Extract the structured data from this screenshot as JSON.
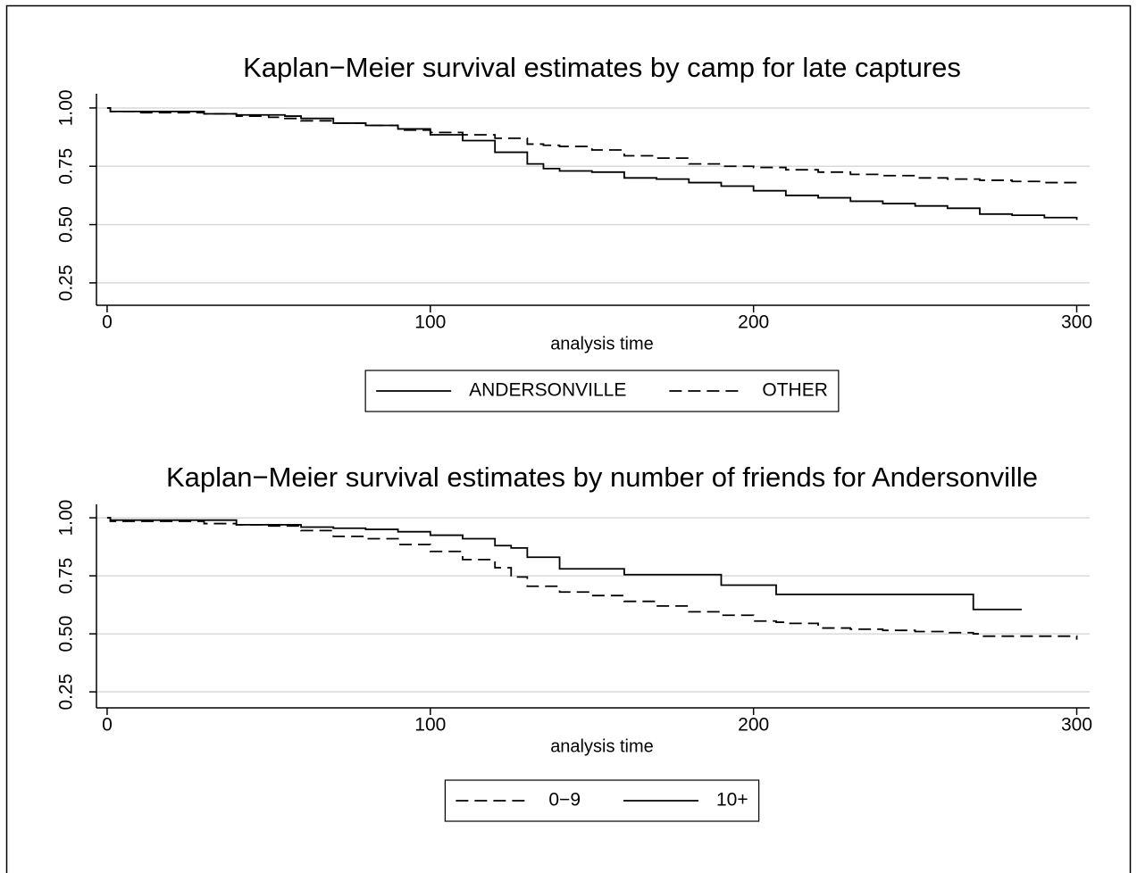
{
  "chart_data": [
    {
      "type": "line",
      "title": "Kaplan−Meier survival estimates by camp for late captures",
      "x_label": "analysis time",
      "step": true,
      "grid": true,
      "x": [
        0,
        1,
        10,
        20,
        30,
        40,
        50,
        55,
        60,
        70,
        80,
        90,
        100,
        110,
        120,
        130,
        135,
        140,
        150,
        160,
        170,
        180,
        190,
        200,
        210,
        220,
        230,
        240,
        250,
        260,
        270,
        280,
        290,
        300
      ],
      "series": [
        {
          "name": "ANDERSONVILLE",
          "color": "#000000",
          "line_style": "solid",
          "values": [
            1.0,
            0.985,
            0.985,
            0.985,
            0.975,
            0.97,
            0.97,
            0.965,
            0.955,
            0.935,
            0.925,
            0.91,
            0.885,
            0.86,
            0.81,
            0.76,
            0.74,
            0.73,
            0.725,
            0.7,
            0.695,
            0.68,
            0.665,
            0.645,
            0.625,
            0.615,
            0.6,
            0.59,
            0.58,
            0.57,
            0.545,
            0.54,
            0.53,
            0.52
          ]
        },
        {
          "name": "OTHER",
          "color": "#000000",
          "line_style": "dashed",
          "values": [
            1.0,
            0.985,
            0.98,
            0.98,
            0.975,
            0.965,
            0.96,
            0.955,
            0.945,
            0.935,
            0.925,
            0.905,
            0.895,
            0.885,
            0.87,
            0.845,
            0.84,
            0.835,
            0.82,
            0.795,
            0.785,
            0.76,
            0.75,
            0.745,
            0.735,
            0.725,
            0.715,
            0.71,
            0.7,
            0.695,
            0.69,
            0.685,
            0.68,
            0.67
          ]
        }
      ],
      "xlim": [
        -3.3,
        304
      ],
      "xticks": [
        0,
        100,
        200,
        300
      ],
      "ylim": [
        0.154,
        1.061
      ],
      "yticks": [
        {
          "value": 0.25,
          "label": "0.25"
        },
        {
          "value": 0.5,
          "label": "0.50"
        },
        {
          "value": 0.75,
          "label": "0.75"
        },
        {
          "value": 1,
          "label": "1.00"
        }
      ]
    },
    {
      "type": "line",
      "title": "Kaplan−Meier survival estimates by number of friends for Andersonville",
      "x_label": "analysis time",
      "step": true,
      "grid": true,
      "x": [
        0,
        1,
        10,
        20,
        30,
        40,
        50,
        60,
        70,
        80,
        90,
        100,
        110,
        120,
        125,
        130,
        140,
        150,
        160,
        170,
        180,
        190,
        200,
        207,
        210,
        220,
        230,
        240,
        250,
        260,
        268,
        270,
        280,
        283,
        290,
        300
      ],
      "series": [
        {
          "name": "0−9",
          "color": "#000000",
          "line_style": "dashed",
          "values": [
            1.0,
            0.985,
            0.985,
            0.985,
            0.975,
            0.97,
            0.965,
            0.945,
            0.92,
            0.91,
            0.885,
            0.855,
            0.82,
            0.785,
            0.745,
            0.705,
            0.68,
            0.665,
            0.64,
            0.62,
            0.595,
            0.58,
            0.555,
            0.55,
            0.545,
            0.525,
            0.52,
            0.515,
            0.51,
            0.505,
            0.5,
            0.49,
            0.49,
            0.49,
            0.49,
            0.475
          ]
        },
        {
          "name": "10+",
          "color": "#000000",
          "line_style": "solid",
          "values": [
            1.0,
            0.99,
            0.99,
            0.99,
            0.99,
            0.97,
            0.97,
            0.96,
            0.955,
            0.95,
            0.94,
            0.925,
            0.91,
            0.88,
            0.87,
            0.83,
            0.78,
            0.78,
            0.755,
            0.755,
            0.755,
            0.71,
            0.71,
            0.67,
            0.67,
            0.67,
            0.67,
            0.67,
            0.67,
            0.67,
            0.605,
            0.605,
            0.605,
            0.605,
            null,
            null
          ]
        }
      ],
      "xlim": [
        -3.3,
        304
      ],
      "xticks": [
        0,
        100,
        200,
        300
      ],
      "ylim": [
        0.181,
        1.058
      ],
      "yticks": [
        {
          "value": 0.25,
          "label": "0.25"
        },
        {
          "value": 0.5,
          "label": "0.50"
        },
        {
          "value": 0.75,
          "label": "0.75"
        },
        {
          "value": 1,
          "label": "1.00"
        }
      ]
    }
  ]
}
